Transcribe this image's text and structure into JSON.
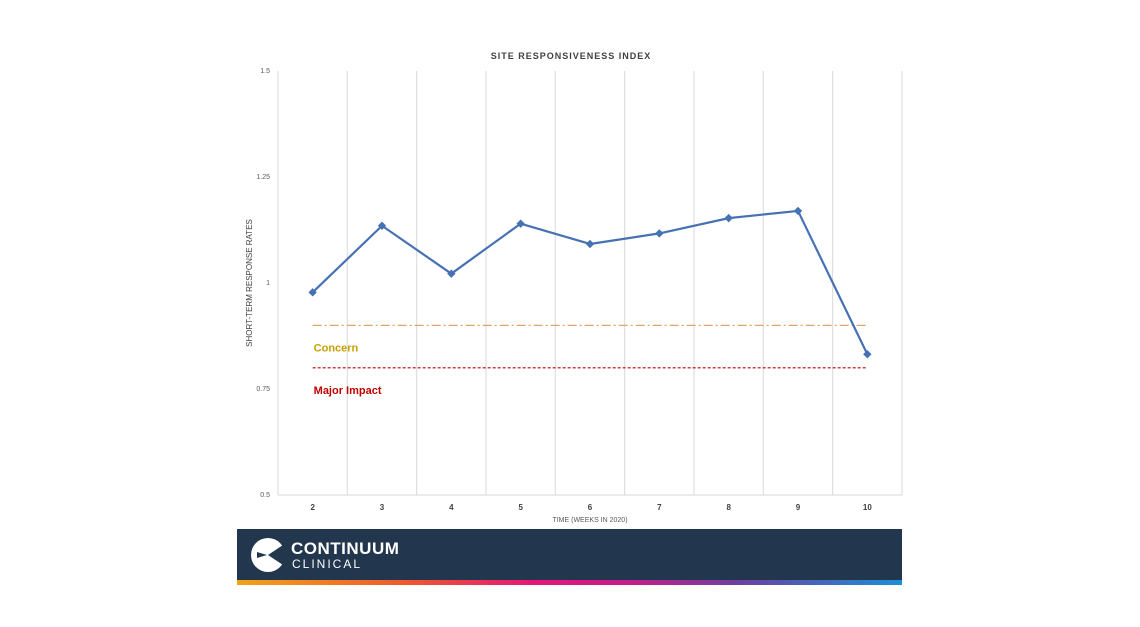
{
  "chart_data": {
    "type": "line",
    "title": "SITE RESPONSIVENESS INDEX",
    "xlabel": "TIME (WEEKS IN 2020)",
    "ylabel": "SHORT-TERM RESPONSE RATES",
    "categories": [
      "2",
      "3",
      "4",
      "5",
      "6",
      "7",
      "8",
      "9",
      "10"
    ],
    "series": [
      {
        "values": [
          0.978,
          1.135,
          1.022,
          1.14,
          1.092,
          1.117,
          1.153,
          1.17,
          0.832
        ],
        "color": "#4672b4"
      }
    ],
    "ylim": [
      0.5,
      1.5
    ],
    "yticks": [
      {
        "value": 0.5,
        "label": "0.5"
      },
      {
        "value": 0.75,
        "label": "0.75"
      },
      {
        "value": 1,
        "label": "1"
      },
      {
        "value": 1.25,
        "label": "1.25"
      },
      {
        "value": 1.5,
        "label": "1.5"
      }
    ],
    "thresholds": [
      {
        "label": "Concern",
        "value": 0.9,
        "color": "#e0a468",
        "text_color": "#c8a000",
        "style": "dash-dot"
      },
      {
        "label": "Major Impact",
        "value": 0.8,
        "color": "#c00000",
        "text_color": "#c00000",
        "style": "dashed"
      }
    ],
    "grid": "vertical",
    "legend": "none"
  },
  "footer": {
    "brand_name": "CONTINUUM",
    "brand_sub": "CLINICAL",
    "background": "#22364d"
  }
}
